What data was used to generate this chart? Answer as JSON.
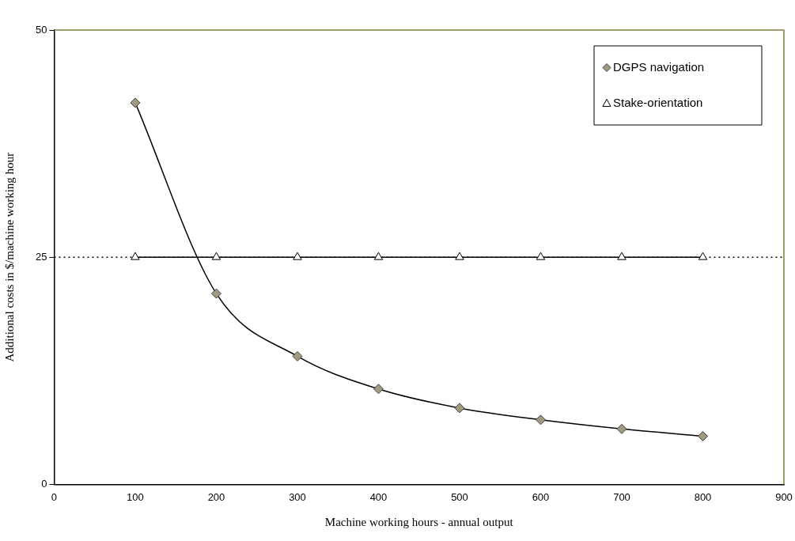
{
  "chart_data": {
    "type": "line",
    "xlabel": "Machine working hours - annual output",
    "ylabel": "Additional costs in $/machine working hour",
    "x": [
      100,
      200,
      300,
      400,
      500,
      600,
      700,
      800
    ],
    "series": [
      {
        "name": "DGPS navigation",
        "color": "#a09a80",
        "values": [
          42,
          21,
          14.1,
          10.5,
          8.4,
          7.1,
          6.1,
          5.3
        ],
        "marker": "diamond"
      },
      {
        "name": "Stake-orientation",
        "color": "#000000",
        "values": [
          25,
          25,
          25,
          25,
          25,
          25,
          25,
          25
        ],
        "marker": "triangle"
      }
    ],
    "xlim": [
      0,
      900
    ],
    "xticks": [
      0,
      100,
      200,
      300,
      400,
      500,
      600,
      700,
      800,
      900
    ],
    "ylim": [
      0,
      50
    ],
    "yticks": [
      0,
      25,
      50
    ],
    "ref_lines": [
      {
        "axis": "y",
        "value": 25,
        "line_style": "dotted",
        "color": "#000000"
      }
    ],
    "grid": false,
    "legend": "top right",
    "line_style": "solid"
  }
}
